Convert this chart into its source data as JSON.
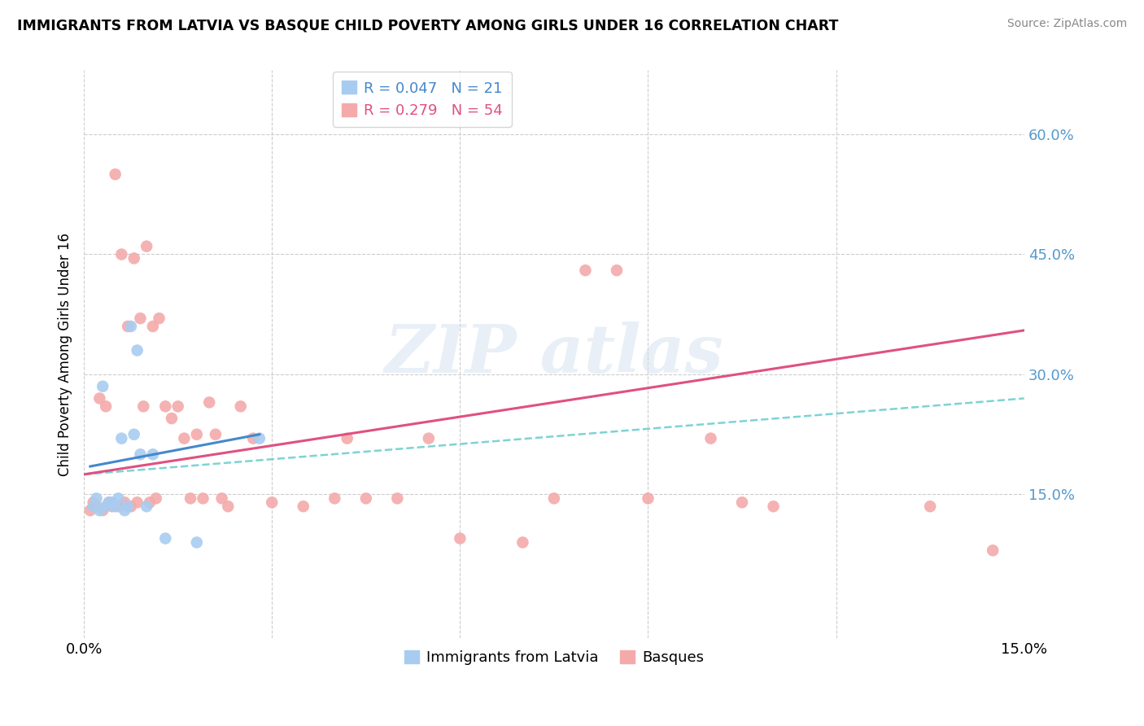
{
  "title": "IMMIGRANTS FROM LATVIA VS BASQUE CHILD POVERTY AMONG GIRLS UNDER 16 CORRELATION CHART",
  "source": "Source: ZipAtlas.com",
  "ylabel": "Child Poverty Among Girls Under 16",
  "legend_label1": "Immigrants from Latvia",
  "legend_label2": "Basques",
  "r1": "0.047",
  "n1": "21",
  "r2": "0.279",
  "n2": "54",
  "color_blue": "#A8CCF0",
  "color_pink": "#F4AAAA",
  "color_blue_line": "#4488CC",
  "color_pink_line": "#E05080",
  "color_teal_dash": "#66CCCC",
  "xlim": [
    0.0,
    15.0
  ],
  "ylim": [
    -3.0,
    68.0
  ],
  "yticks": [
    15.0,
    30.0,
    45.0,
    60.0
  ],
  "xtick_positions": [
    0.0,
    3.0,
    6.0,
    9.0,
    12.0,
    15.0
  ],
  "blue_scatter_x": [
    0.15,
    0.2,
    0.25,
    0.3,
    0.35,
    0.4,
    0.45,
    0.5,
    0.55,
    0.6,
    0.65,
    0.7,
    0.75,
    0.8,
    0.85,
    0.9,
    1.0,
    1.1,
    1.3,
    1.8,
    2.8
  ],
  "blue_scatter_y": [
    13.5,
    14.5,
    13.0,
    28.5,
    13.5,
    14.0,
    14.0,
    13.5,
    14.5,
    22.0,
    13.0,
    13.5,
    36.0,
    22.5,
    33.0,
    20.0,
    13.5,
    20.0,
    9.5,
    9.0,
    22.0
  ],
  "pink_scatter_x": [
    0.1,
    0.15,
    0.2,
    0.25,
    0.3,
    0.35,
    0.4,
    0.45,
    0.5,
    0.55,
    0.6,
    0.65,
    0.7,
    0.75,
    0.8,
    0.85,
    0.9,
    0.95,
    1.0,
    1.05,
    1.1,
    1.15,
    1.2,
    1.3,
    1.4,
    1.5,
    1.6,
    1.7,
    1.8,
    1.9,
    2.0,
    2.1,
    2.2,
    2.3,
    2.5,
    2.7,
    3.0,
    3.5,
    4.0,
    4.2,
    4.5,
    5.0,
    5.5,
    6.0,
    7.0,
    7.5,
    8.0,
    8.5,
    9.0,
    10.0,
    10.5,
    11.0,
    13.5,
    14.5
  ],
  "pink_scatter_y": [
    13.0,
    14.0,
    13.5,
    27.0,
    13.0,
    26.0,
    14.0,
    13.5,
    55.0,
    13.5,
    45.0,
    14.0,
    36.0,
    13.5,
    44.5,
    14.0,
    37.0,
    26.0,
    46.0,
    14.0,
    36.0,
    14.5,
    37.0,
    26.0,
    24.5,
    26.0,
    22.0,
    14.5,
    22.5,
    14.5,
    26.5,
    22.5,
    14.5,
    13.5,
    26.0,
    22.0,
    14.0,
    13.5,
    14.5,
    22.0,
    14.5,
    14.5,
    22.0,
    9.5,
    9.0,
    14.5,
    43.0,
    43.0,
    14.5,
    22.0,
    14.0,
    13.5,
    13.5,
    8.0
  ],
  "pink_line_x": [
    0.0,
    15.0
  ],
  "pink_line_y": [
    17.5,
    35.5
  ],
  "blue_line_x": [
    0.1,
    2.8
  ],
  "blue_line_y": [
    18.5,
    22.5
  ],
  "teal_line_x": [
    0.0,
    15.0
  ],
  "teal_line_y": [
    17.5,
    27.0
  ]
}
